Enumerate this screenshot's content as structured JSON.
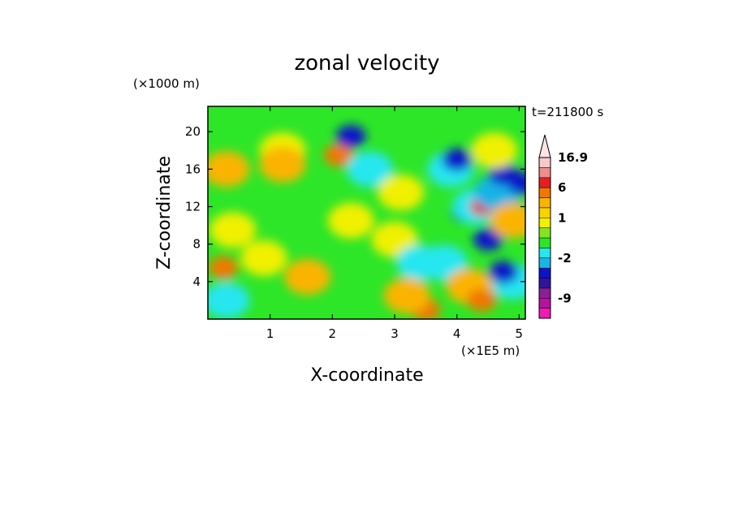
{
  "chart_data": {
    "type": "heatmap",
    "title": "zonal velocity",
    "xlabel": "X-coordinate",
    "ylabel": "Z-coordinate",
    "x_unit": "(×1E5 m)",
    "y_unit": "(×1000 m)",
    "time_label": "t=211800 s",
    "xlim": [
      0,
      5.1
    ],
    "ylim": [
      0,
      22.7
    ],
    "x_ticks": [
      1,
      2,
      3,
      4,
      5
    ],
    "y_ticks": [
      4,
      8,
      12,
      16,
      20
    ],
    "grid": false,
    "colorbar": {
      "position": "right",
      "max_label": "16.9",
      "tick_labels": [
        {
          "value": 16.9,
          "label": "16.9"
        },
        {
          "value": 6,
          "label": "6"
        },
        {
          "value": 1,
          "label": "1"
        },
        {
          "value": -2,
          "label": "-2"
        },
        {
          "value": -9,
          "label": "-9"
        }
      ],
      "levels": [
        {
          "lower": -13,
          "upper": -11,
          "color": "#f01ab4"
        },
        {
          "lower": -11,
          "upper": -9,
          "color": "#b414a0"
        },
        {
          "lower": -9,
          "upper": -7,
          "color": "#8c1e96"
        },
        {
          "lower": -7,
          "upper": -5,
          "color": "#3214a0"
        },
        {
          "lower": -5,
          "upper": -3,
          "color": "#0a14c8"
        },
        {
          "lower": -3,
          "upper": -2,
          "color": "#19b4e6"
        },
        {
          "lower": -2,
          "upper": -1,
          "color": "#28e6f0"
        },
        {
          "lower": -1,
          "upper": 0,
          "color": "#2de628"
        },
        {
          "lower": 0,
          "upper": 0.5,
          "color": "#82e61e"
        },
        {
          "lower": 0.5,
          "upper": 1,
          "color": "#f0f000"
        },
        {
          "lower": 1,
          "upper": 2,
          "color": "#fad200"
        },
        {
          "lower": 2,
          "upper": 3,
          "color": "#fab400"
        },
        {
          "lower": 3,
          "upper": 6,
          "color": "#f07800"
        },
        {
          "lower": 6,
          "upper": 9,
          "color": "#e61e1e"
        },
        {
          "lower": 9,
          "upper": 13,
          "color": "#f08c8c"
        },
        {
          "lower": 13,
          "upper": 16.9,
          "color": "#fac8c8"
        }
      ]
    },
    "features": [
      {
        "x": 0.25,
        "z": 5.5,
        "value": 3
      },
      {
        "x": 0.4,
        "z": 9.5,
        "value": 0.8
      },
      {
        "x": 0.3,
        "z": 2.0,
        "value": -1.5
      },
      {
        "x": 0.9,
        "z": 6.5,
        "value": 0.8
      },
      {
        "x": 1.2,
        "z": 18.0,
        "value": 0.8
      },
      {
        "x": 0.3,
        "z": 16.0,
        "value": 2
      },
      {
        "x": 1.2,
        "z": 16.5,
        "value": 2
      },
      {
        "x": 1.6,
        "z": 4.5,
        "value": 2
      },
      {
        "x": 2.1,
        "z": 17.5,
        "value": 3
      },
      {
        "x": 2.3,
        "z": 19.5,
        "value": -4
      },
      {
        "x": 2.3,
        "z": 10.5,
        "value": 0.8
      },
      {
        "x": 2.6,
        "z": 16.0,
        "value": -1.5
      },
      {
        "x": 3.0,
        "z": 8.5,
        "value": 0.8
      },
      {
        "x": 3.1,
        "z": 13.5,
        "value": 0.8
      },
      {
        "x": 3.4,
        "z": 6.0,
        "value": -1.5
      },
      {
        "x": 3.5,
        "z": 1.0,
        "value": 3
      },
      {
        "x": 3.2,
        "z": 2.5,
        "value": 2
      },
      {
        "x": 3.8,
        "z": 6.0,
        "value": -1.5
      },
      {
        "x": 3.9,
        "z": 16.0,
        "value": -1.5
      },
      {
        "x": 4.0,
        "z": 17.0,
        "value": -4
      },
      {
        "x": 4.15,
        "z": 11.5,
        "value": -4
      },
      {
        "x": 4.3,
        "z": 12.0,
        "value": -1.5
      },
      {
        "x": 4.4,
        "z": 12.0,
        "value": 7
      },
      {
        "x": 4.5,
        "z": 8.5,
        "value": -4
      },
      {
        "x": 4.65,
        "z": 13.5,
        "value": -2.5
      },
      {
        "x": 4.75,
        "z": 15.5,
        "value": -4
      },
      {
        "x": 4.9,
        "z": 10.5,
        "value": 2
      },
      {
        "x": 4.9,
        "z": 4.0,
        "value": -1.5
      },
      {
        "x": 4.75,
        "z": 5.0,
        "value": -4
      },
      {
        "x": 5.05,
        "z": 14.5,
        "value": -4
      },
      {
        "x": 4.2,
        "z": 3.5,
        "value": 2
      },
      {
        "x": 4.4,
        "z": 2.0,
        "value": 3
      },
      {
        "x": 4.6,
        "z": 18.0,
        "value": 0.8
      }
    ]
  }
}
